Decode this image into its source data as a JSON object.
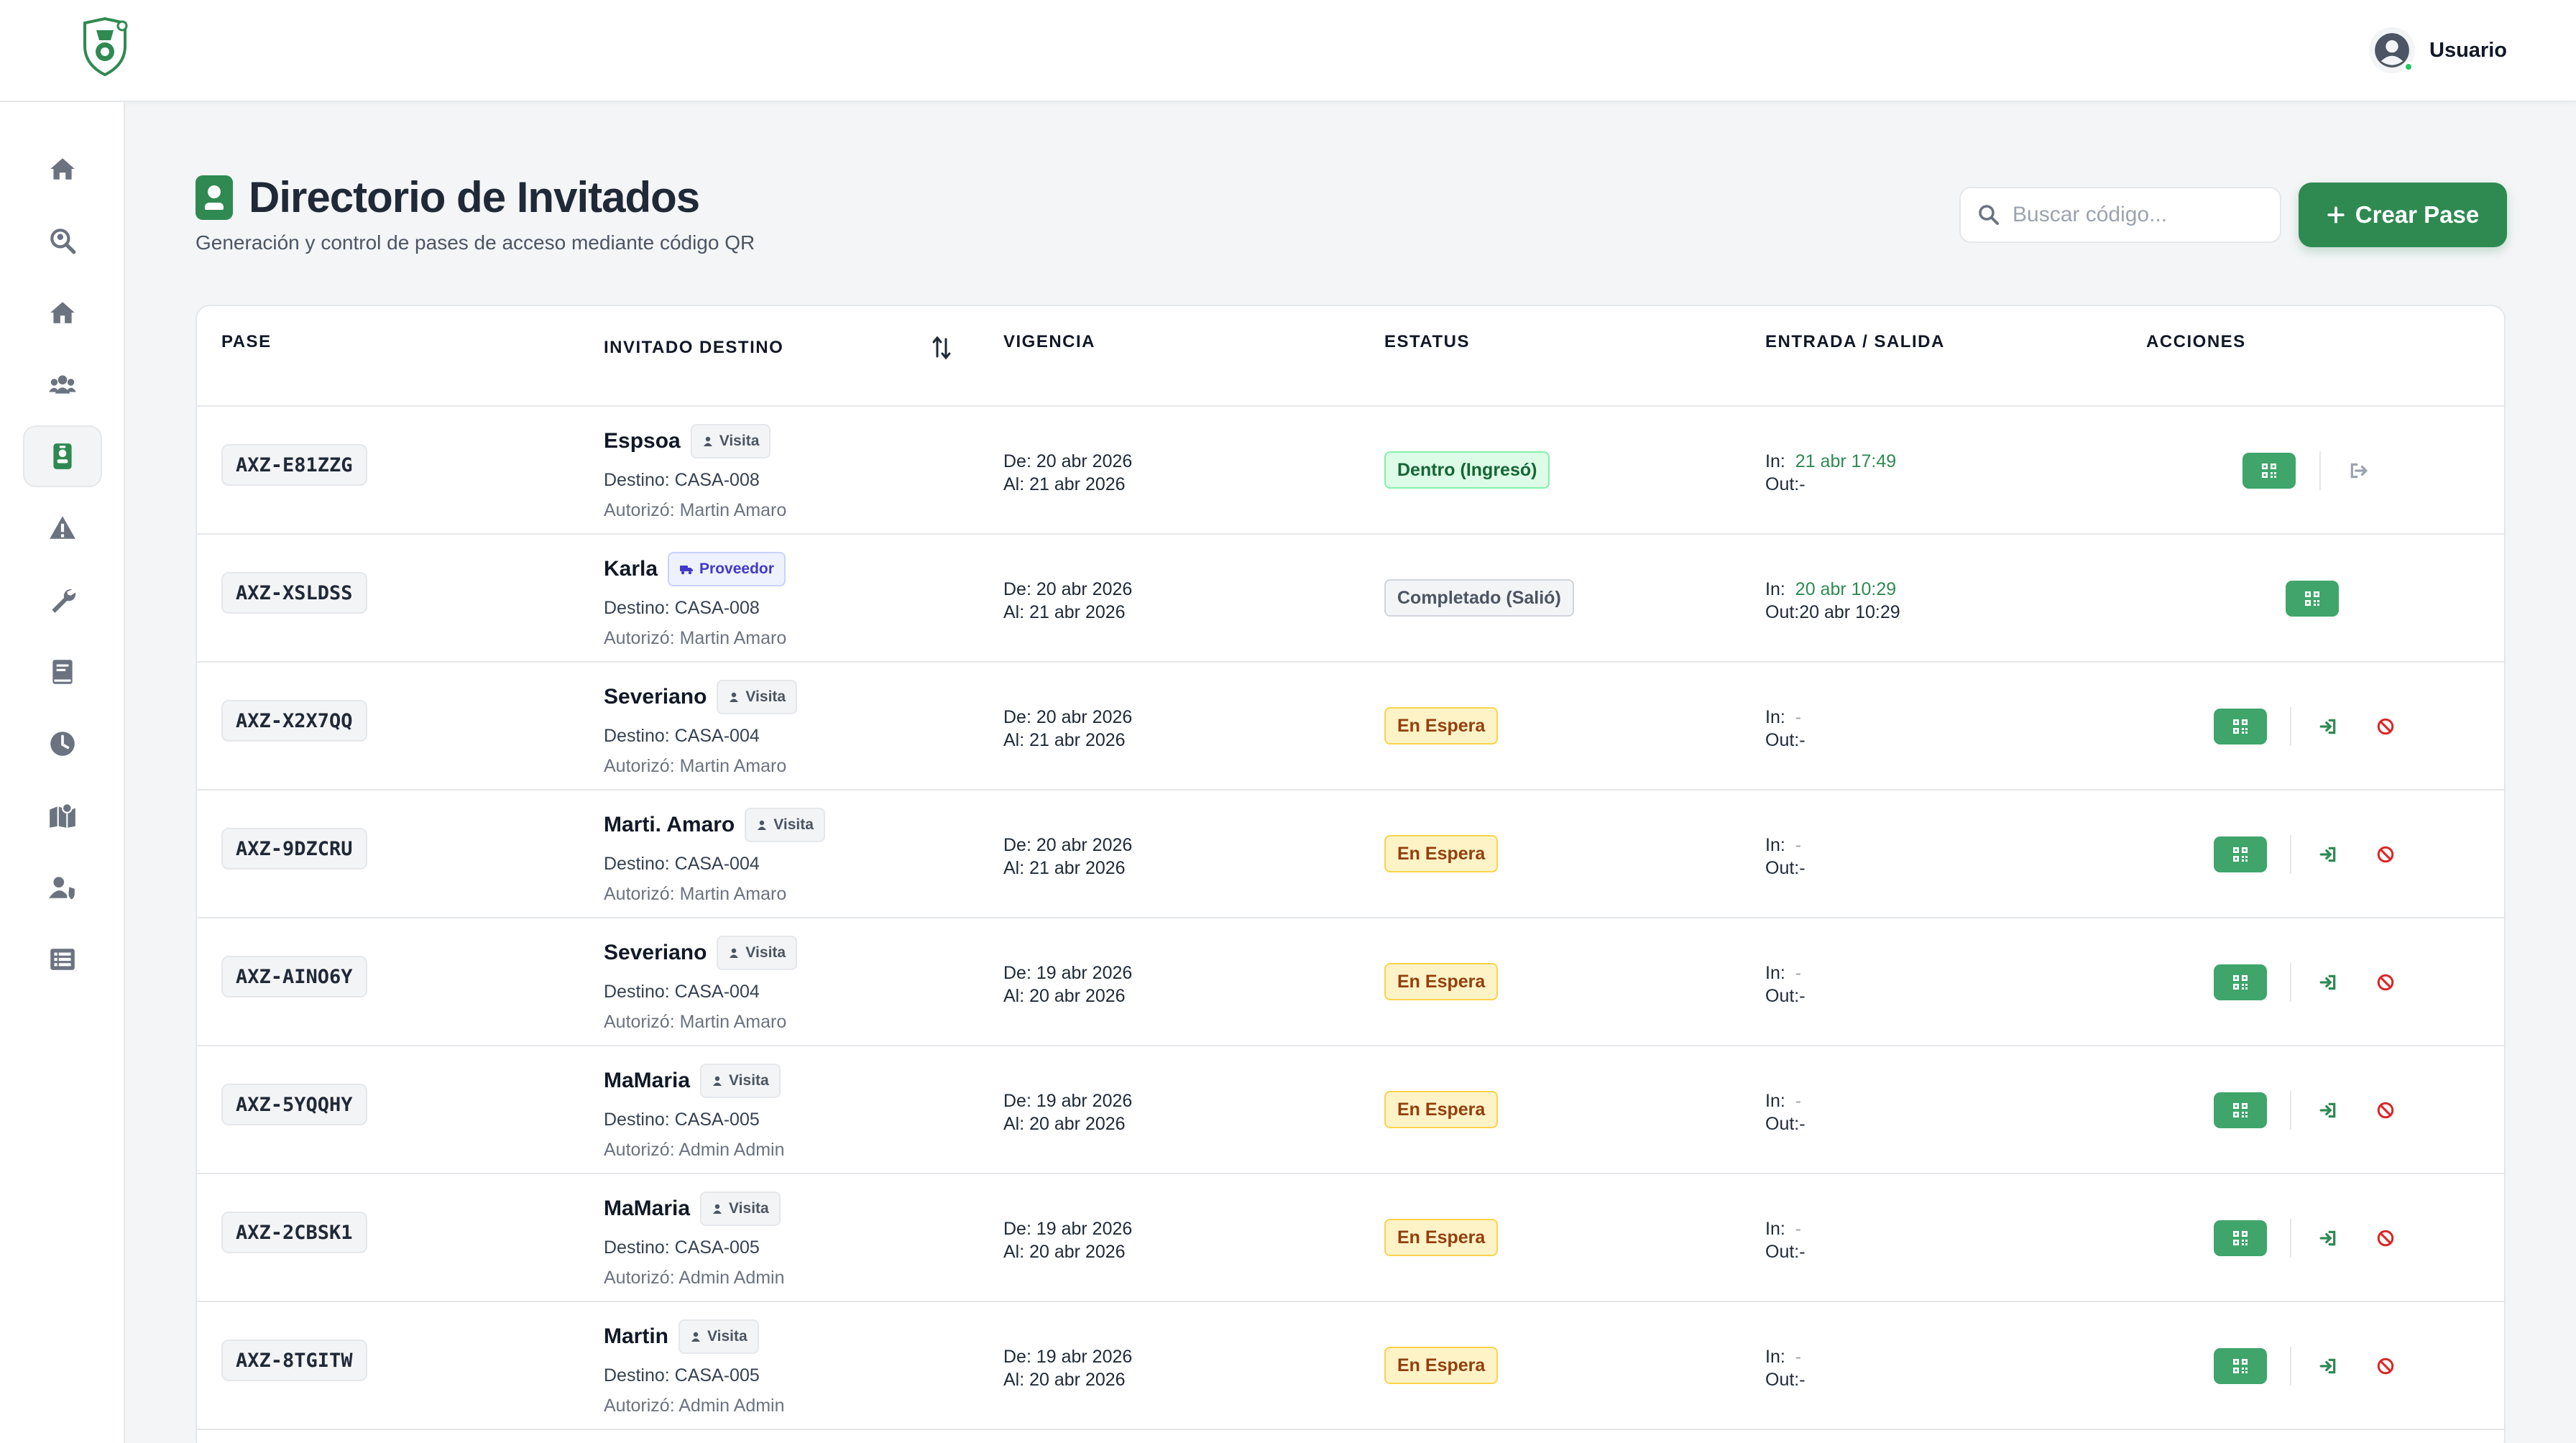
{
  "header": {
    "user_name": "Usuario"
  },
  "sidebar": {
    "items": [
      {
        "icon": "home-icon"
      },
      {
        "icon": "search-location-icon"
      },
      {
        "icon": "house-icon"
      },
      {
        "icon": "users-icon"
      },
      {
        "icon": "id-badge-icon",
        "active": true
      },
      {
        "icon": "warning-icon"
      },
      {
        "icon": "wrench-icon"
      },
      {
        "icon": "book-icon"
      },
      {
        "icon": "clock-icon"
      },
      {
        "icon": "map-icon"
      },
      {
        "icon": "user-shield-icon"
      },
      {
        "icon": "list-icon"
      }
    ]
  },
  "page": {
    "title": "Directorio de Invitados",
    "subtitle": "Generación y control de pases de acceso mediante código QR",
    "search_placeholder": "Buscar código...",
    "create_button": "Crear Pase"
  },
  "table": {
    "headers": {
      "pase": "PASE",
      "invitado": "INVITADO DESTINO",
      "vigencia": "VIGENCIA",
      "estatus": "ESTATUS",
      "entrada_salida": "ENTRADA / SALIDA",
      "acciones": "ACCIONES"
    },
    "labels": {
      "in": "In:",
      "out": "Out:",
      "destino_prefix": "Destino: ",
      "autorizo_prefix": "Autorizó: ",
      "de_prefix": "De: ",
      "al_prefix": "Al: "
    },
    "rows": [
      {
        "code": "AXZ-E81ZZG",
        "name": "Espsoa",
        "type": "Visita",
        "dest": "Destino: CASA-008",
        "auth": "Autorizó: Martin Amaro",
        "from": "De: 20 abr 2026",
        "to": "Al: 21 abr 2026",
        "status": "Dentro (Ingresó)",
        "status_kind": "inside",
        "in": "21 abr 17:49",
        "out": "-",
        "actions": "qr-exit"
      },
      {
        "code": "AXZ-XSLDSS",
        "name": "Karla",
        "type": "Proveedor",
        "dest": "Destino: CASA-008",
        "auth": "Autorizó: Martin Amaro",
        "from": "De: 20 abr 2026",
        "to": "Al: 21 abr 2026",
        "status": "Completado (Salió)",
        "status_kind": "done",
        "in": "20 abr 10:29",
        "out": "20 abr 10:29",
        "actions": "qr"
      },
      {
        "code": "AXZ-X2X7QQ",
        "name": "Severiano",
        "type": "Visita",
        "dest": "Destino: CASA-004",
        "auth": "Autorizó: Martin Amaro",
        "from": "De: 20 abr 2026",
        "to": "Al: 21 abr 2026",
        "status": "En Espera",
        "status_kind": "wait",
        "in": "-",
        "out": "-",
        "actions": "qr-enter-cancel"
      },
      {
        "code": "AXZ-9DZCRU",
        "name": "Marti. Amaro",
        "type": "Visita",
        "dest": "Destino: CASA-004",
        "auth": "Autorizó: Martin Amaro",
        "from": "De: 20 abr 2026",
        "to": "Al: 21 abr 2026",
        "status": "En Espera",
        "status_kind": "wait",
        "in": "-",
        "out": "-",
        "actions": "qr-enter-cancel"
      },
      {
        "code": "AXZ-AINO6Y",
        "name": "Severiano",
        "type": "Visita",
        "dest": "Destino: CASA-004",
        "auth": "Autorizó: Martin Amaro",
        "from": "De: 19 abr 2026",
        "to": "Al: 20 abr 2026",
        "status": "En Espera",
        "status_kind": "wait",
        "in": "-",
        "out": "-",
        "actions": "qr-enter-cancel"
      },
      {
        "code": "AXZ-5YQQHY",
        "name": "MaMaria",
        "type": "Visita",
        "dest": "Destino: CASA-005",
        "auth": "Autorizó: Admin Admin",
        "from": "De: 19 abr 2026",
        "to": "Al: 20 abr 2026",
        "status": "En Espera",
        "status_kind": "wait",
        "in": "-",
        "out": "-",
        "actions": "qr-enter-cancel"
      },
      {
        "code": "AXZ-2CBSK1",
        "name": "MaMaria",
        "type": "Visita",
        "dest": "Destino: CASA-005",
        "auth": "Autorizó: Admin Admin",
        "from": "De: 19 abr 2026",
        "to": "Al: 20 abr 2026",
        "status": "En Espera",
        "status_kind": "wait",
        "in": "-",
        "out": "-",
        "actions": "qr-enter-cancel"
      },
      {
        "code": "AXZ-8TGITW",
        "name": "Martin",
        "type": "Visita",
        "dest": "Destino: CASA-005",
        "auth": "Autorizó: Admin Admin",
        "from": "De: 19 abr 2026",
        "to": "Al: 20 abr 2026",
        "status": "En Espera",
        "status_kind": "wait",
        "in": "-",
        "out": "-",
        "actions": "qr-enter-cancel"
      }
    ]
  },
  "colors": {
    "brand_green": "#2f8a52",
    "qr_button": "#3fa56a",
    "cancel_red": "#dc2626"
  }
}
